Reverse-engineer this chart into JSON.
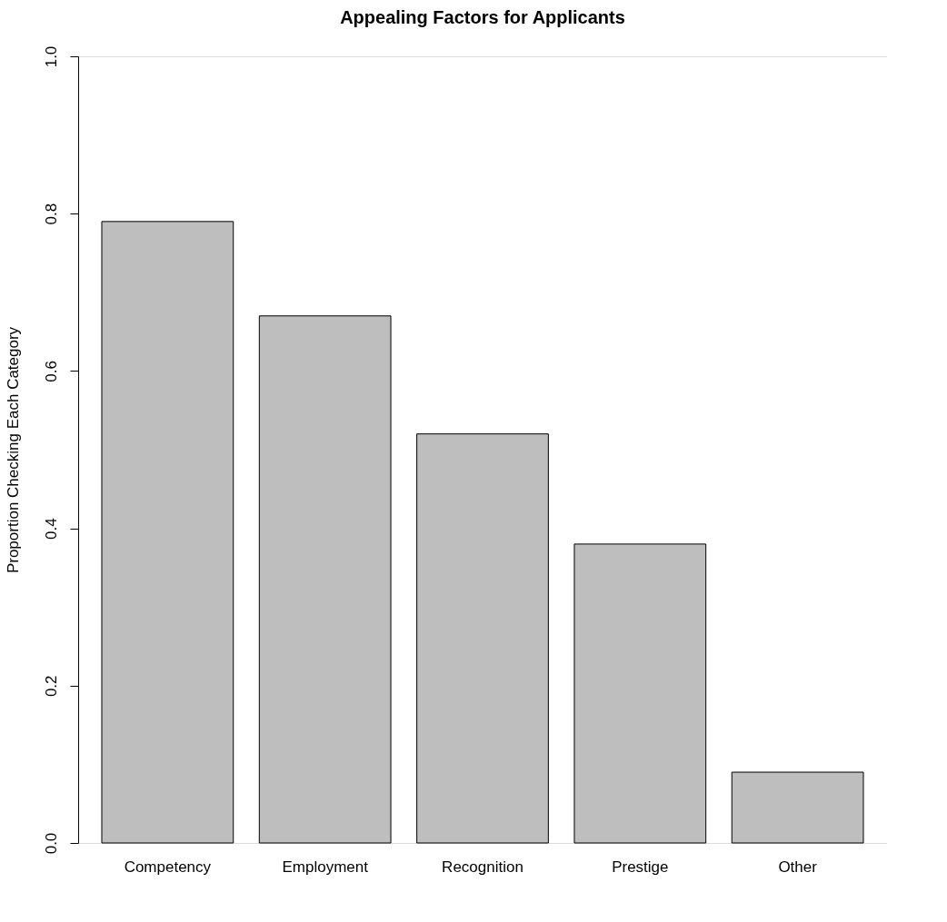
{
  "chart_data": {
    "type": "bar",
    "title": "Appealing Factors for Applicants",
    "ylabel": "Proportion Checking Each Category",
    "categories": [
      "Competency",
      "Employment",
      "Recognition",
      "Prestige",
      "Other"
    ],
    "values": [
      0.79,
      0.67,
      0.52,
      0.38,
      0.09
    ],
    "color": "#bebebe",
    "ylim": [
      0,
      1
    ],
    "yticks": [
      {
        "value": 0,
        "label": "0.0"
      },
      0.2,
      0.4,
      0.6,
      0.8,
      {
        "value": 1,
        "label": "1.0"
      }
    ]
  }
}
